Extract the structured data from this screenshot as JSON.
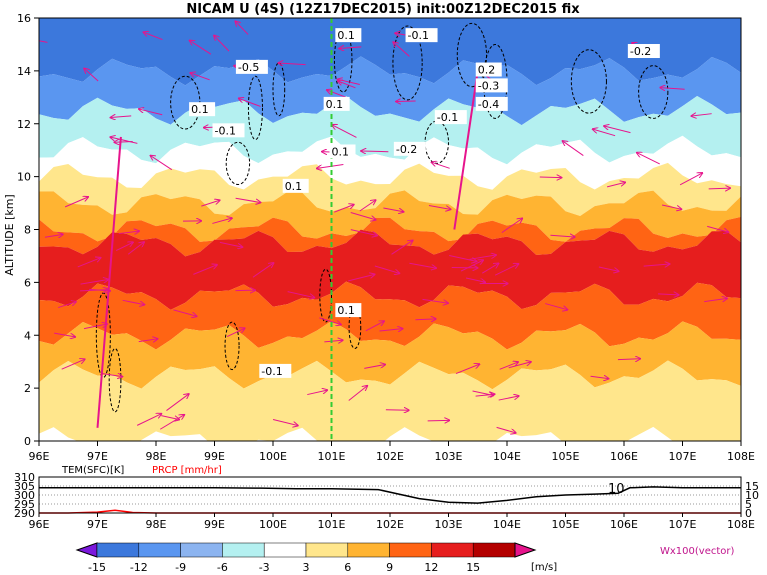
{
  "title": "NICAM U (4S) (12Z17DEC2015) init:00Z12DEC2015 fix",
  "chart_data": [
    {
      "type": "heatmap",
      "title": "NICAM U (4S) (12Z17DEC2015) init:00Z12DEC2015 fix",
      "ylabel": "ALTITUDE [km]",
      "x_ticks": [
        "96E",
        "97E",
        "98E",
        "99E",
        "100E",
        "101E",
        "102E",
        "103E",
        "104E",
        "105E",
        "106E",
        "107E",
        "108E"
      ],
      "y_ticks": [
        "0",
        "2",
        "4",
        "6",
        "8",
        "10",
        "12",
        "14",
        "16"
      ],
      "xlim": [
        96,
        108
      ],
      "ylim": [
        0,
        16
      ],
      "marker_longitude": 101,
      "contour_labels": [
        "0.1",
        "-0.1",
        "-0.2",
        "0.2",
        "-0.3",
        "-0.4",
        "-0.5",
        "0.1",
        "-0.1",
        "0.1",
        "0.1",
        "-0.1",
        "0.1",
        "-0.1",
        "0.1",
        "-0.2"
      ],
      "u_layers_ms": [
        {
          "range": [
            14,
            16
          ],
          "value": -15
        },
        {
          "range": [
            12.5,
            14
          ],
          "value": -10
        },
        {
          "range": [
            11,
            12.5
          ],
          "value": -6
        },
        {
          "range": [
            10,
            11
          ],
          "value": -2
        },
        {
          "range": [
            9,
            10
          ],
          "value": 4
        },
        {
          "range": [
            8,
            9
          ],
          "value": 7
        },
        {
          "range": [
            7.5,
            8
          ],
          "value": 9
        },
        {
          "range": [
            5.5,
            7.5
          ],
          "value": 13
        },
        {
          "range": [
            4,
            5.5
          ],
          "value": 10
        },
        {
          "range": [
            2.5,
            4
          ],
          "value": 7
        },
        {
          "range": [
            0,
            2.5
          ],
          "value": 5
        }
      ],
      "vector_label": "Wx100(vector)"
    },
    {
      "type": "line",
      "series": [
        {
          "name": "TEM(SFC)[K]",
          "color": "#000000",
          "x": [
            96,
            97,
            98,
            99,
            99.8,
            100.4,
            101,
            101.8,
            102.5,
            103,
            103.5,
            104,
            104.5,
            105,
            105.5,
            105.9,
            106.1,
            106.5,
            107,
            108
          ],
          "values": [
            304,
            304,
            304,
            304,
            303.8,
            303.5,
            303.5,
            303,
            298,
            296,
            295.5,
            297,
            299,
            300,
            300.5,
            301,
            304,
            304.5,
            304,
            304
          ]
        },
        {
          "name": "PRCP [mm/hr]",
          "color": "#ff0000",
          "x": [
            96,
            96.5,
            97,
            97.3,
            97.6,
            98,
            108
          ],
          "values": [
            0,
            0,
            0.5,
            1.5,
            0.3,
            0,
            0
          ]
        }
      ],
      "xlim": [
        96,
        108
      ],
      "y_ticks_left": [
        "310",
        "305",
        "300",
        "295",
        "290"
      ],
      "y_ticks_right": [
        "15",
        "10",
        "5",
        "0"
      ],
      "annotation": "10"
    }
  ],
  "colorbar": {
    "ticks": [
      "-15",
      "-12",
      "-9",
      "-6",
      "-3",
      "3",
      "6",
      "9",
      "12",
      "15"
    ],
    "unit": "[m/s]",
    "colors": [
      "#7b18dc",
      "#3c78dc",
      "#5a96f0",
      "#8cb4f0",
      "#b4f0f0",
      "#ffffff",
      "#ffe68c",
      "#ffb432",
      "#ff6414",
      "#e61e1e",
      "#b40000",
      "#e6148c"
    ]
  }
}
